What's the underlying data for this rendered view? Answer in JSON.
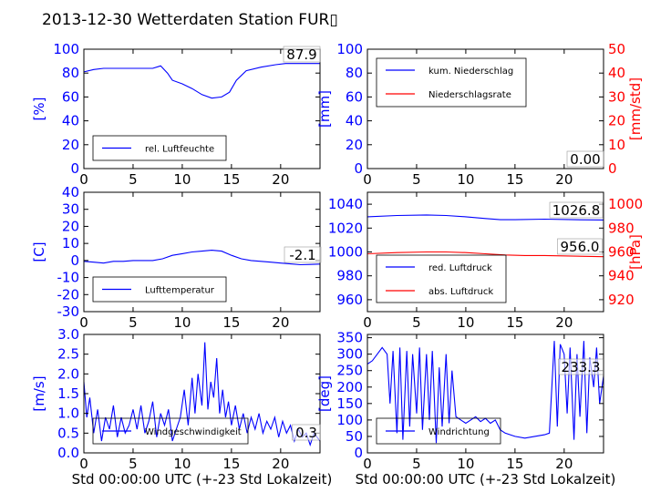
{
  "figure": {
    "title": "2013-12-30 Wetterdaten Station FUR▯",
    "xlabel": "Std 00:00:00 UTC (+-23 Std Lokalzeit)"
  },
  "colors": {
    "primary": "#0000ff",
    "secondary": "#ff0000",
    "axis": "#000000"
  },
  "chart_data": [
    {
      "id": "humidity",
      "type": "line",
      "xlim": [
        0,
        24
      ],
      "ylim": [
        0,
        100
      ],
      "xticks": [
        0,
        5,
        10,
        15,
        20
      ],
      "yticks": [
        0,
        20,
        40,
        60,
        80,
        100
      ],
      "ylabel": "[%]",
      "legend": "bottom-left",
      "annotation": "87.9",
      "series": [
        {
          "name": "rel. Luftfeuchte",
          "color": "#0000ff",
          "x": [
            0,
            1,
            2,
            3,
            4,
            5,
            6,
            7,
            7.8,
            8.5,
            9,
            10,
            11,
            12,
            13,
            14,
            14.8,
            15.5,
            16.5,
            18,
            19.5,
            20.5,
            21.5,
            22.5,
            23,
            24
          ],
          "y": [
            81,
            83,
            84,
            84,
            84,
            84,
            84,
            84,
            86,
            80,
            74,
            71,
            67,
            62,
            59,
            60,
            64,
            74,
            82,
            85,
            87,
            88,
            88,
            88,
            88,
            88
          ]
        }
      ]
    },
    {
      "id": "precipitation",
      "type": "line",
      "xlim": [
        0,
        24
      ],
      "ylim": [
        0,
        100
      ],
      "ylim2": [
        0,
        50
      ],
      "xticks": [
        0,
        5,
        10,
        15,
        20
      ],
      "yticks": [
        0,
        20,
        40,
        60,
        80,
        100
      ],
      "yticks2": [
        0,
        10,
        20,
        30,
        40,
        50
      ],
      "ylabel": "[mm]",
      "ylabel2": "[mm/std]",
      "legend": "top-left",
      "annotation": "0.00",
      "series": [
        {
          "name": "kum. Niederschlag",
          "color": "#0000ff",
          "axis": "left",
          "x": [
            0,
            24
          ],
          "y": [
            0,
            0
          ]
        },
        {
          "name": "Niederschlagsrate",
          "color": "#ff0000",
          "axis": "right",
          "x": [
            0,
            24
          ],
          "y": [
            0,
            0
          ]
        }
      ]
    },
    {
      "id": "temperature",
      "type": "line",
      "xlim": [
        0,
        24
      ],
      "ylim": [
        -30,
        40
      ],
      "xticks": [
        0,
        5,
        10,
        15,
        20
      ],
      "yticks": [
        -30,
        -20,
        -10,
        0,
        10,
        20,
        30,
        40
      ],
      "ylabel": "[C]",
      "legend": "bottom-left",
      "annotation": "-2.1",
      "series": [
        {
          "name": "Lufttemperatur",
          "color": "#0000ff",
          "x": [
            0,
            1,
            2,
            3,
            4,
            5,
            6,
            7,
            8,
            9,
            10,
            11,
            12,
            13,
            14,
            15,
            16,
            17,
            18,
            19,
            20,
            21,
            22,
            23,
            24
          ],
          "y": [
            -0.5,
            -1,
            -1.5,
            -0.5,
            -0.5,
            0,
            0,
            0,
            1,
            3,
            4,
            5,
            5.5,
            6,
            5.5,
            3,
            1,
            0,
            -0.5,
            -1,
            -1.5,
            -2,
            -2.5,
            -2.3,
            -2.1
          ]
        }
      ]
    },
    {
      "id": "pressure",
      "type": "line",
      "xlim": [
        0,
        24
      ],
      "ylim": [
        950,
        1050
      ],
      "ylim2": [
        910,
        1010
      ],
      "xticks": [
        0,
        5,
        10,
        15,
        20
      ],
      "yticks": [
        960,
        980,
        1000,
        1020,
        1040
      ],
      "yticks2": [
        920,
        940,
        960,
        980,
        1000
      ],
      "ylabel2": "[hPa]",
      "legend": "bottom-left",
      "annotations": [
        "1026.8",
        "956.0"
      ],
      "series": [
        {
          "name": "red. Luftdruck",
          "color": "#0000ff",
          "axis": "left",
          "x": [
            0,
            3,
            6,
            8,
            10,
            12,
            13.5,
            15,
            18,
            21,
            24
          ],
          "y": [
            1029.5,
            1030.5,
            1031,
            1030.5,
            1029.5,
            1028,
            1027,
            1027,
            1027.5,
            1027,
            1026.8
          ]
        },
        {
          "name": "abs. Luftdruck",
          "color": "#ff0000",
          "axis": "right",
          "x": [
            0,
            3,
            6,
            8,
            10,
            12,
            14,
            16,
            18,
            21,
            24
          ],
          "y": [
            958.5,
            959.5,
            960,
            960,
            959.5,
            958.5,
            957.5,
            957,
            957,
            956.5,
            956
          ]
        }
      ]
    },
    {
      "id": "windspeed",
      "type": "line",
      "xlim": [
        0,
        24
      ],
      "ylim": [
        0,
        3
      ],
      "xticks": [
        0,
        5,
        10,
        15,
        20
      ],
      "yticks": [
        0.0,
        0.5,
        1.0,
        1.5,
        2.0,
        2.5,
        3.0
      ],
      "ylabel": "[m/s]",
      "xlabel": "Std 00:00:00 UTC (+-23 Std Lokalzeit)",
      "legend": "bottom-left",
      "annotation": "0.3",
      "series": [
        {
          "name": "Windgeschwindigkeit",
          "color": "#0000ff",
          "x": [
            0,
            0.3,
            0.6,
            1,
            1.4,
            1.8,
            2.2,
            2.6,
            3,
            3.4,
            3.8,
            4.2,
            4.6,
            5,
            5.4,
            5.8,
            6.2,
            6.6,
            7,
            7.4,
            7.8,
            8.2,
            8.6,
            9,
            9.4,
            9.8,
            10.2,
            10.6,
            11,
            11.3,
            11.6,
            12,
            12.3,
            12.6,
            12.9,
            13.2,
            13.5,
            13.8,
            14.1,
            14.4,
            14.7,
            15,
            15.4,
            15.8,
            16.2,
            16.6,
            17,
            17.4,
            17.8,
            18.2,
            18.6,
            19,
            19.4,
            19.8,
            20.2,
            20.6,
            21,
            21.4,
            21.8,
            22.2,
            22.6,
            23,
            23.4,
            24
          ],
          "y": [
            1.8,
            0.9,
            1.4,
            0.5,
            1.1,
            0.3,
            0.9,
            0.6,
            1.2,
            0.4,
            0.9,
            0.5,
            0.7,
            1.1,
            0.6,
            1.2,
            0.5,
            0.8,
            1.3,
            0.4,
            1.0,
            0.7,
            1.1,
            0.3,
            0.6,
            0.9,
            1.6,
            0.7,
            1.9,
            1.0,
            2.0,
            1.2,
            2.8,
            1.1,
            1.8,
            1.4,
            2.4,
            1.0,
            1.6,
            0.9,
            1.3,
            0.7,
            1.2,
            0.6,
            1.0,
            0.5,
            0.9,
            0.6,
            1.0,
            0.5,
            0.8,
            0.6,
            0.9,
            0.4,
            0.8,
            0.5,
            0.7,
            0.3,
            0.6,
            0.4,
            0.5,
            0.2,
            0.5,
            0.3
          ]
        }
      ]
    },
    {
      "id": "winddirection",
      "type": "line",
      "xlim": [
        0,
        24
      ],
      "ylim": [
        0,
        360
      ],
      "xticks": [
        0,
        5,
        10,
        15,
        20
      ],
      "yticks": [
        0,
        50,
        100,
        150,
        200,
        250,
        300,
        350
      ],
      "ylabel": "[deg]",
      "xlabel": "Std 00:00:00 UTC (+-23 Std Lokalzeit)",
      "legend": "bottom-left",
      "annotation": "233.3",
      "series": [
        {
          "name": "Windrichtung",
          "color": "#0000ff",
          "x": [
            0,
            0.5,
            1,
            1.5,
            2,
            2.3,
            2.6,
            3,
            3.3,
            3.6,
            4,
            4.3,
            4.6,
            5,
            5.3,
            5.6,
            6,
            6.3,
            6.6,
            7,
            7.3,
            7.6,
            8,
            8.3,
            8.6,
            9,
            9.5,
            10,
            10.5,
            11,
            11.5,
            12,
            12.5,
            13,
            13.5,
            14,
            15,
            16,
            17,
            18,
            18.5,
            19,
            19.3,
            19.6,
            20,
            20.3,
            20.6,
            21,
            21.3,
            21.6,
            22,
            22.3,
            22.6,
            23,
            23.3,
            23.6,
            24
          ],
          "y": [
            270,
            280,
            300,
            320,
            300,
            150,
            310,
            60,
            320,
            40,
            310,
            80,
            300,
            120,
            320,
            70,
            300,
            100,
            310,
            30,
            260,
            80,
            300,
            90,
            250,
            110,
            100,
            90,
            100,
            110,
            95,
            105,
            90,
            100,
            70,
            60,
            50,
            45,
            50,
            55,
            60,
            340,
            80,
            330,
            300,
            120,
            320,
            40,
            300,
            110,
            340,
            60,
            290,
            200,
            320,
            150,
            233
          ]
        }
      ]
    }
  ]
}
